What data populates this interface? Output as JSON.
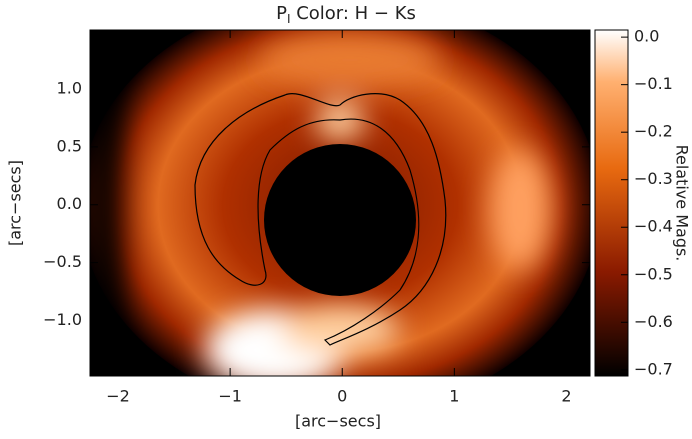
{
  "chart_data": {
    "type": "heatmap",
    "title": {
      "main": "P",
      "subscript": "I",
      "rest": " Color: H − Ks"
    },
    "x_label": "[arc−secs]",
    "y_label": "[arc−secs]",
    "colorbar_label": "Relative Mags.",
    "xlim": [
      -2.25,
      2.21
    ],
    "ylim": [
      -1.48,
      1.51
    ],
    "xticks": [
      {
        "value": -2,
        "label": "−2"
      },
      {
        "value": -1,
        "label": "−1"
      },
      0,
      1,
      2
    ],
    "yticks": [
      {
        "value": -1,
        "label": "−1.0"
      },
      {
        "value": -0.5,
        "label": "−0.5"
      },
      {
        "value": 0,
        "label": "0.0"
      },
      0.5,
      {
        "value": 1,
        "label": "1.0"
      }
    ],
    "clim": [
      -0.713,
      0.015
    ],
    "cticks": [
      {
        "value": 0,
        "label": "0.0"
      },
      {
        "value": -0.1,
        "label": "−0.1"
      },
      {
        "value": -0.2,
        "label": "−0.2"
      },
      {
        "value": -0.3,
        "label": "−0.3"
      },
      {
        "value": -0.4,
        "label": "−0.4"
      },
      {
        "value": -0.5,
        "label": "−0.5"
      },
      {
        "value": -0.6,
        "label": "−0.6"
      },
      {
        "value": -0.7,
        "label": "−0.7"
      }
    ]
  }
}
